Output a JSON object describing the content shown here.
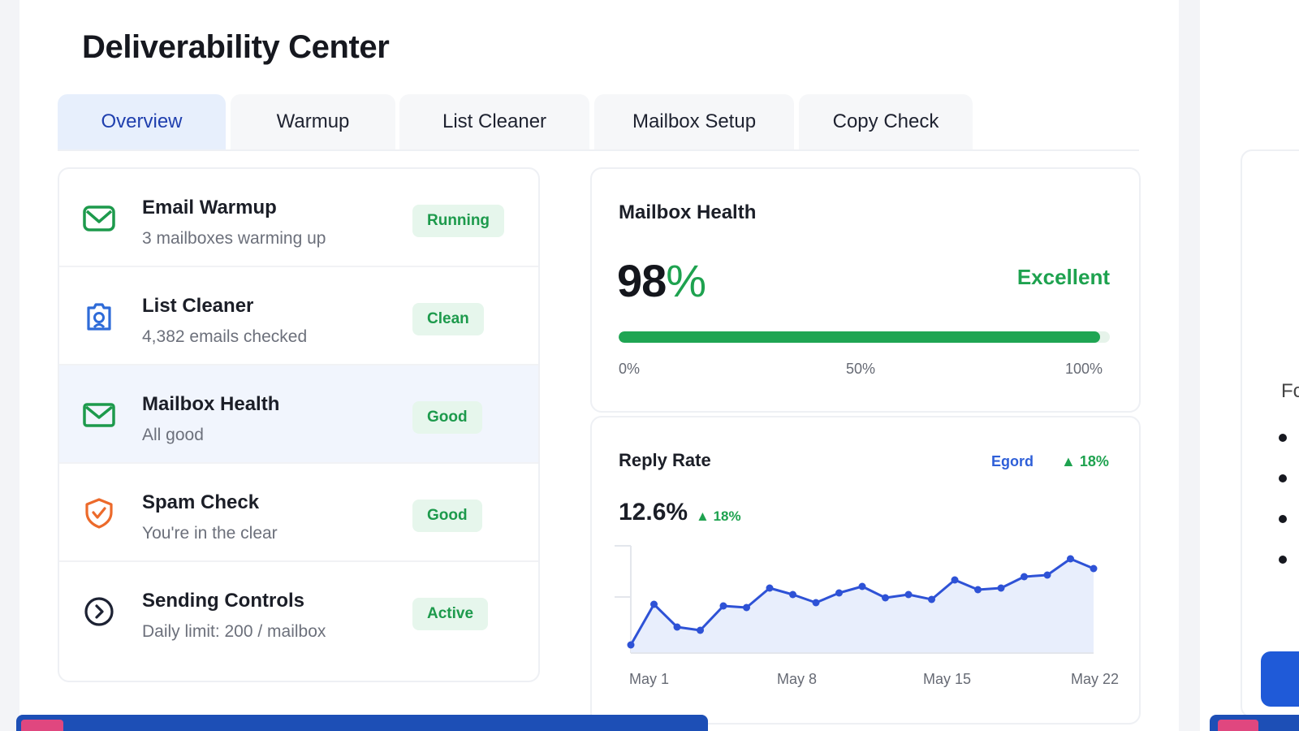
{
  "page": {
    "title": "Deliverability Center"
  },
  "tabs": [
    {
      "label": "Overview",
      "active": true
    },
    {
      "label": "Warmup",
      "active": false
    },
    {
      "label": "List Cleaner",
      "active": false
    },
    {
      "label": "Mailbox Setup",
      "active": false
    },
    {
      "label": "Copy Check",
      "active": false
    }
  ],
  "items": [
    {
      "title": "Email Warmup",
      "subtitle": "3 mailboxes warming up",
      "status": "Running",
      "icon": "envelope-icon",
      "color": "#1d9a4c"
    },
    {
      "title": "List Cleaner",
      "subtitle": "4,382 emails checked",
      "status": "Clean",
      "icon": "list-cleaner-icon",
      "color": "#2e6bd8"
    },
    {
      "title": "Mailbox Health",
      "subtitle": "All good",
      "status": "Good",
      "icon": "mailbox-icon",
      "color": "#1d9a4c"
    },
    {
      "title": "Spam Check",
      "subtitle": "You're in the clear",
      "status": "Good",
      "icon": "shield-check-icon",
      "color": "#ec6a2b"
    },
    {
      "title": "Sending Controls",
      "subtitle": "Daily limit: 200 / mailbox",
      "status": "Active",
      "icon": "gauge-icon",
      "color": "#1d2233"
    }
  ],
  "mailbox_health": {
    "label": "Mailbox Health",
    "value": "98",
    "unit": "%",
    "status": "Excellent",
    "progress": 0.98,
    "ticks": [
      "0%",
      "50%",
      "100%"
    ]
  },
  "reply_rate": {
    "label": "Reply Rate",
    "legend_label": "Egord",
    "legend_delta": "18%",
    "value": "12.6%",
    "delta": "18%"
  },
  "side_panel": {
    "text": "Fc"
  },
  "colors": {
    "accent": "#1f3fae",
    "good": "#1ea24f",
    "chart_line": "#2e52d6"
  },
  "chart_data": {
    "type": "area",
    "x_tick_labels": [
      "May 1",
      "May 8",
      "May 15",
      "May 22"
    ],
    "values": [
      1.0,
      6.0,
      3.2,
      2.8,
      5.8,
      5.6,
      8.0,
      7.2,
      6.2,
      7.4,
      8.2,
      6.8,
      7.2,
      6.6,
      9.0,
      7.8,
      8.0,
      9.4,
      9.6,
      11.6,
      10.4
    ],
    "ylim": [
      0,
      13
    ],
    "grid": false,
    "legend": "top-right"
  }
}
